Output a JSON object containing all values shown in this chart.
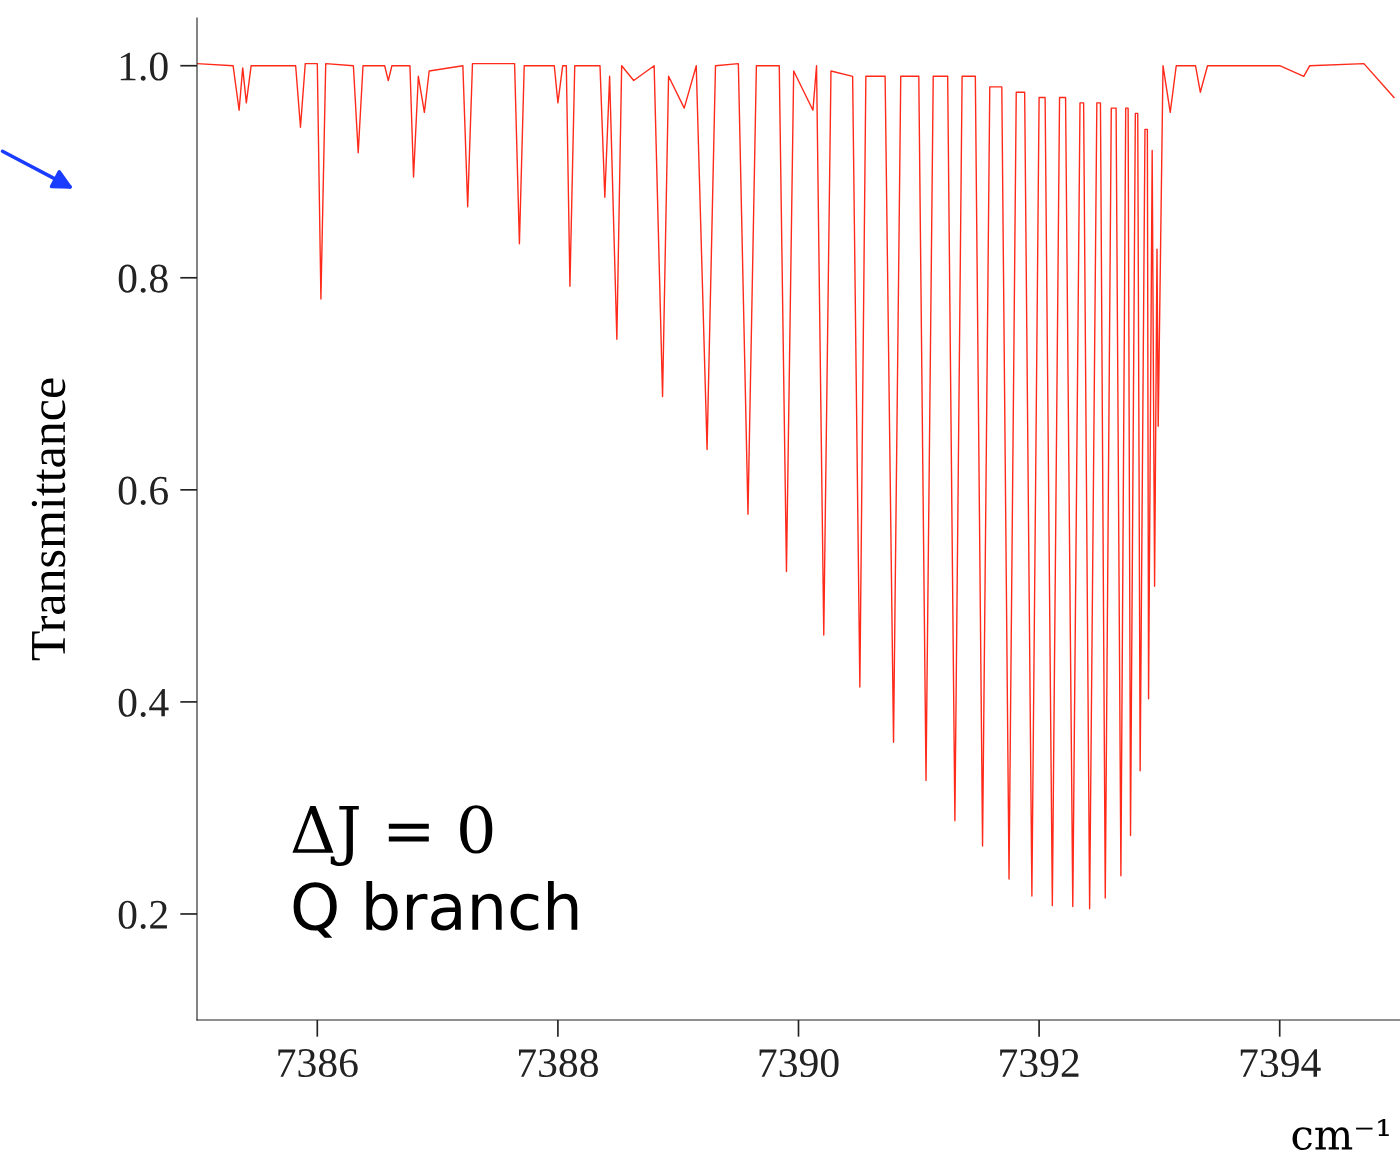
{
  "chart_data": {
    "type": "line",
    "xlabel": "cm⁻¹",
    "ylabel": "Transmittance",
    "annotations": [
      "ΔJ = 0",
      "Q branch"
    ],
    "xlim": [
      7385,
      7395
    ],
    "xticks": [
      7386,
      7388,
      7390,
      7392,
      7394
    ],
    "ylim": [
      0.1,
      1.045
    ],
    "yticks": [
      0.2,
      0.4,
      0.6,
      0.8,
      {
        "value": 1.0,
        "label": "1.0"
      }
    ],
    "grid": false,
    "series": [
      {
        "color": "#ff2a1a",
        "x": [
          7385.0,
          7385.3,
          7385.35,
          7385.38,
          7385.41,
          7385.45,
          7385.82,
          7385.86,
          7385.9,
          7386.0,
          7386.03,
          7386.07,
          7386.3,
          7386.34,
          7386.38,
          7386.56,
          7386.59,
          7386.62,
          7386.77,
          7386.8,
          7386.84,
          7386.89,
          7386.93,
          7387.21,
          7387.25,
          7387.29,
          7387.64,
          7387.68,
          7387.72,
          7387.97,
          7388.0,
          7388.04,
          7388.07,
          7388.1,
          7388.14,
          7388.35,
          7388.39,
          7388.43,
          7388.49,
          7388.53,
          7388.63,
          7388.8,
          7388.87,
          7388.92,
          7389.05,
          7389.15,
          7389.24,
          7389.31,
          7389.5,
          7389.58,
          7389.65,
          7389.84,
          7389.9,
          7389.96,
          7390.12,
          7390.15,
          7390.21,
          7390.27,
          7390.45,
          7390.51,
          7390.56,
          7390.72,
          7390.79,
          7390.85,
          7391.0,
          7391.06,
          7391.12,
          7391.24,
          7391.3,
          7391.36,
          7391.47,
          7391.53,
          7391.59,
          7391.69,
          7391.75,
          7391.81,
          7391.88,
          7391.94,
          7392.0,
          7392.05,
          7392.11,
          7392.17,
          7392.22,
          7392.28,
          7392.34,
          7392.37,
          7392.42,
          7392.48,
          7392.51,
          7392.55,
          7392.6,
          7392.64,
          7392.68,
          7392.72,
          7392.74,
          7392.76,
          7392.8,
          7392.82,
          7392.84,
          7392.88,
          7392.9,
          7392.91,
          7392.94,
          7392.96,
          7392.98,
          7392.99,
          7393.03,
          7393.09,
          7393.14,
          7393.3,
          7393.34,
          7393.4,
          7393.6,
          7394.0,
          7394.2,
          7394.25,
          7394.7,
          7394.95
        ],
        "values": [
          1.002,
          1.0,
          0.958,
          0.998,
          0.965,
          1.0,
          1.0,
          0.942,
          1.002,
          1.002,
          0.78,
          1.002,
          1.0,
          0.918,
          1.0,
          1.0,
          0.986,
          1.0,
          1.0,
          0.895,
          0.99,
          0.956,
          0.995,
          1.0,
          0.867,
          1.002,
          1.002,
          0.832,
          1.0,
          1.0,
          0.965,
          1.0,
          1.0,
          0.792,
          1.0,
          1.0,
          0.876,
          0.99,
          0.742,
          1.0,
          0.986,
          1.0,
          0.688,
          0.99,
          0.96,
          1.0,
          0.638,
          1.0,
          1.002,
          0.577,
          1.0,
          1.0,
          0.523,
          0.995,
          0.958,
          1.0,
          0.463,
          0.995,
          0.99,
          0.414,
          0.99,
          0.99,
          0.362,
          0.99,
          0.99,
          0.326,
          0.99,
          0.99,
          0.288,
          0.99,
          0.99,
          0.264,
          0.98,
          0.98,
          0.233,
          0.975,
          0.975,
          0.217,
          0.97,
          0.97,
          0.208,
          0.97,
          0.97,
          0.207,
          0.965,
          0.965,
          0.205,
          0.965,
          0.965,
          0.215,
          0.96,
          0.96,
          0.236,
          0.96,
          0.96,
          0.274,
          0.955,
          0.955,
          0.335,
          0.94,
          0.94,
          0.403,
          0.92,
          0.509,
          0.827,
          0.66,
          1.0,
          0.956,
          1.0,
          1.0,
          0.975,
          1.0,
          1.0,
          1.0,
          0.99,
          1.0,
          1.002,
          0.97
        ]
      }
    ]
  }
}
